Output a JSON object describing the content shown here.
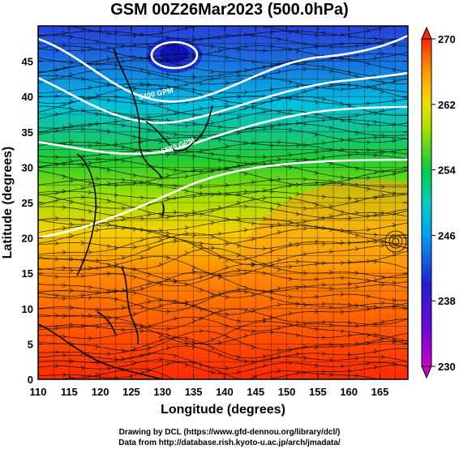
{
  "title": "GSM 00Z26Mar2023 (500.0hPa)",
  "xlabel": "Longitude (degrees)",
  "ylabel": "Latitude  (degrees)",
  "x_ticks": [
    "110",
    "115",
    "120",
    "125",
    "130",
    "135",
    "140",
    "145",
    "150",
    "155",
    "160",
    "165"
  ],
  "y_ticks": [
    "0",
    "5",
    "10",
    "15",
    "20",
    "25",
    "30",
    "35",
    "40",
    "45"
  ],
  "colorbar": {
    "ticks": [
      "230",
      "238",
      "246",
      "254",
      "262",
      "270"
    ],
    "min": 230,
    "max": 270,
    "colors": [
      "#c800c8",
      "#2020d0",
      "#00c8e6",
      "#00cc44",
      "#e6e600",
      "#ff9900",
      "#ff2a00"
    ]
  },
  "contour_labels": [
    "5400 GPM",
    "5580 GPM"
  ],
  "credits": {
    "line1": "Drawing by DCL (https://www.gfd-dennou.org/library/dcl/)",
    "line2": "Data from http://database.rish.kyoto-u.ac.jp/arch/jmadata/"
  }
}
